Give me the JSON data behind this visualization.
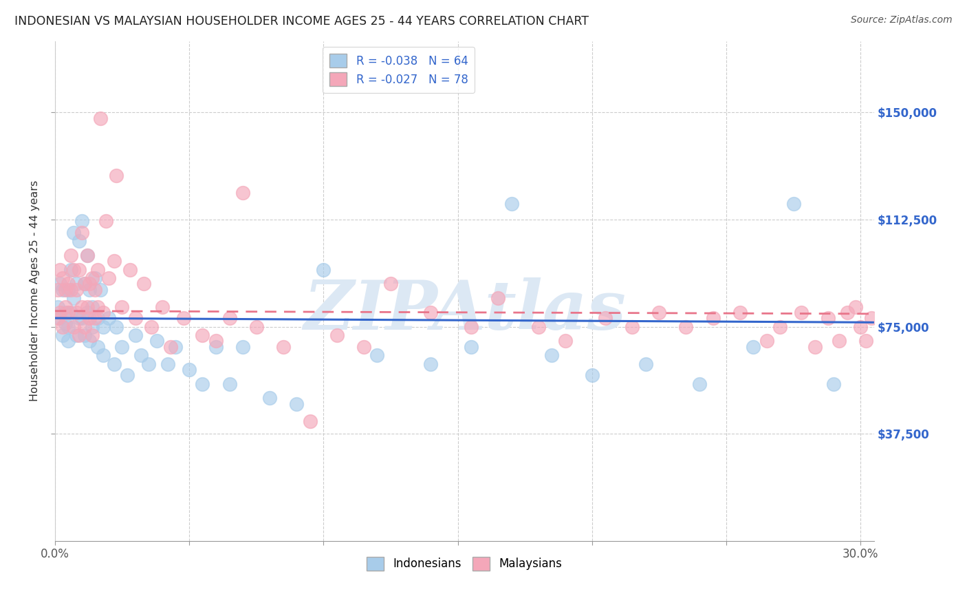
{
  "title": "INDONESIAN VS MALAYSIAN HOUSEHOLDER INCOME AGES 25 - 44 YEARS CORRELATION CHART",
  "source": "Source: ZipAtlas.com",
  "ylabel": "Householder Income Ages 25 - 44 years",
  "xlim": [
    0.0,
    0.305
  ],
  "ylim": [
    0,
    175000
  ],
  "xtick_values": [
    0.0,
    0.05,
    0.1,
    0.15,
    0.2,
    0.25,
    0.3
  ],
  "xtick_labels_show": [
    "0.0%",
    "",
    "",
    "",
    "",
    "",
    "30.0%"
  ],
  "ytick_values": [
    37500,
    75000,
    112500,
    150000
  ],
  "y_right_labels": [
    "$37,500",
    "$75,000",
    "$112,500",
    "$150,000"
  ],
  "indonesian_color": "#A8CCEA",
  "malaysian_color": "#F4A7B9",
  "indonesian_line_color": "#3366CC",
  "malaysian_line_color": "#E8758A",
  "R_indonesian": -0.038,
  "N_indonesian": 64,
  "R_malaysian": -0.027,
  "N_malaysian": 78,
  "background_color": "#FFFFFF",
  "grid_color": "#CCCCCC",
  "watermark_text": "ZIPAtlas",
  "watermark_color": "#DCE8F4",
  "indonesian_x": [
    0.001,
    0.002,
    0.002,
    0.003,
    0.003,
    0.004,
    0.004,
    0.005,
    0.005,
    0.005,
    0.006,
    0.006,
    0.007,
    0.007,
    0.008,
    0.008,
    0.009,
    0.009,
    0.01,
    0.01,
    0.011,
    0.011,
    0.012,
    0.012,
    0.013,
    0.013,
    0.014,
    0.014,
    0.015,
    0.016,
    0.016,
    0.017,
    0.018,
    0.018,
    0.02,
    0.022,
    0.023,
    0.025,
    0.027,
    0.03,
    0.032,
    0.035,
    0.038,
    0.042,
    0.045,
    0.05,
    0.055,
    0.06,
    0.065,
    0.07,
    0.08,
    0.09,
    0.1,
    0.12,
    0.14,
    0.155,
    0.17,
    0.185,
    0.2,
    0.22,
    0.24,
    0.26,
    0.275,
    0.29
  ],
  "indonesian_y": [
    82000,
    90000,
    78000,
    88000,
    72000,
    80000,
    76000,
    88000,
    75000,
    70000,
    95000,
    80000,
    108000,
    85000,
    90000,
    72000,
    105000,
    78000,
    112000,
    78000,
    90000,
    72000,
    100000,
    80000,
    88000,
    70000,
    82000,
    75000,
    92000,
    68000,
    78000,
    88000,
    65000,
    75000,
    78000,
    62000,
    75000,
    68000,
    58000,
    72000,
    65000,
    62000,
    70000,
    62000,
    68000,
    60000,
    55000,
    68000,
    55000,
    68000,
    50000,
    48000,
    95000,
    65000,
    62000,
    68000,
    118000,
    65000,
    58000,
    62000,
    55000,
    68000,
    118000,
    55000
  ],
  "malaysian_x": [
    0.001,
    0.001,
    0.002,
    0.002,
    0.003,
    0.003,
    0.004,
    0.004,
    0.005,
    0.005,
    0.006,
    0.006,
    0.007,
    0.007,
    0.008,
    0.008,
    0.009,
    0.009,
    0.01,
    0.01,
    0.011,
    0.011,
    0.012,
    0.012,
    0.013,
    0.013,
    0.014,
    0.014,
    0.015,
    0.015,
    0.016,
    0.016,
    0.017,
    0.018,
    0.019,
    0.02,
    0.022,
    0.023,
    0.025,
    0.028,
    0.03,
    0.033,
    0.036,
    0.04,
    0.043,
    0.048,
    0.055,
    0.06,
    0.065,
    0.07,
    0.075,
    0.085,
    0.095,
    0.105,
    0.115,
    0.125,
    0.14,
    0.155,
    0.165,
    0.18,
    0.19,
    0.205,
    0.215,
    0.225,
    0.235,
    0.245,
    0.255,
    0.265,
    0.27,
    0.278,
    0.283,
    0.288,
    0.292,
    0.295,
    0.298,
    0.3,
    0.302,
    0.304
  ],
  "malaysian_y": [
    88000,
    78000,
    95000,
    80000,
    92000,
    75000,
    88000,
    82000,
    90000,
    80000,
    100000,
    88000,
    95000,
    75000,
    88000,
    80000,
    95000,
    72000,
    108000,
    82000,
    90000,
    75000,
    100000,
    82000,
    90000,
    78000,
    92000,
    72000,
    88000,
    78000,
    95000,
    82000,
    148000,
    80000,
    112000,
    92000,
    98000,
    128000,
    82000,
    95000,
    78000,
    90000,
    75000,
    82000,
    68000,
    78000,
    72000,
    70000,
    78000,
    122000,
    75000,
    68000,
    42000,
    72000,
    68000,
    90000,
    80000,
    75000,
    85000,
    75000,
    70000,
    78000,
    75000,
    80000,
    75000,
    78000,
    80000,
    70000,
    75000,
    80000,
    68000,
    78000,
    70000,
    80000,
    82000,
    75000,
    70000,
    78000
  ]
}
